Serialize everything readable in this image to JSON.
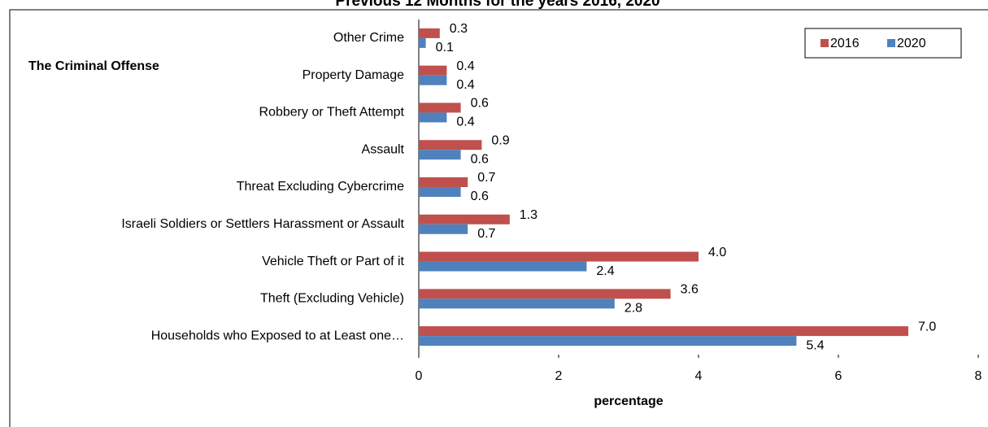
{
  "chart_data": {
    "type": "bar",
    "orientation": "horizontal",
    "title": "Previous 12 Months for the years 2016, 2020",
    "y_label": "The Criminal Offense",
    "x_label": "percentage",
    "categories": [
      "Other Crime",
      "Property Damage",
      "Robbery or Theft Attempt",
      "Assault",
      "Threat Excluding Cybercrime",
      "Israeli Soldiers or Settlers Harassment or Assault",
      "Vehicle Theft or Part of it",
      "Theft (Excluding Vehicle)",
      "Households who Exposed to at Least one…"
    ],
    "series": [
      {
        "name": "2016",
        "color": "#c0504d",
        "values": [
          0.3,
          0.4,
          0.6,
          0.9,
          0.7,
          1.3,
          4,
          3.6,
          7
        ],
        "value_labels": [
          "0.3",
          "0.4",
          "0.6",
          "0.9",
          "0.7",
          "1.3",
          "4.0",
          "3.6",
          "7.0"
        ]
      },
      {
        "name": "2020",
        "color": "#4f81bd",
        "values": [
          0.1,
          0.4,
          0.4,
          0.6,
          0.6,
          0.7,
          2.4,
          2.8,
          5.4
        ],
        "value_labels": [
          "0.1",
          "0.4",
          "0.4",
          "0.6",
          "0.6",
          "0.7",
          "2.4",
          "2.8",
          "5.4"
        ]
      }
    ],
    "xlim": [
      0,
      8
    ],
    "xticks": [
      0,
      2,
      4,
      6,
      8
    ],
    "grid": false,
    "legend": "top-right"
  }
}
